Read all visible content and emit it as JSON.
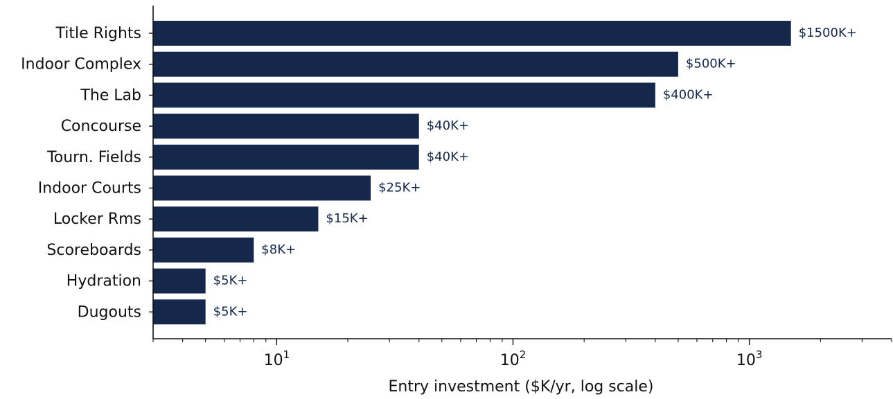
{
  "chart_data": {
    "type": "bar",
    "orientation": "horizontal",
    "categories": [
      "Title Rights",
      "Indoor Complex",
      "The Lab",
      "Concourse",
      "Tourn. Fields",
      "Indoor Courts",
      "Locker Rms",
      "Scoreboards",
      "Hydration",
      "Dugouts"
    ],
    "values": [
      1500,
      500,
      400,
      40,
      40,
      25,
      15,
      8,
      5,
      5
    ],
    "data_labels": [
      "$1500K+",
      "$500K+",
      "$400K+",
      "$40K+",
      "$40K+",
      "$25K+",
      "$15K+",
      "$8K+",
      "$5K+",
      "$5K+"
    ],
    "xlabel": "Entry investment ($K/yr, log scale)",
    "ylabel": "",
    "title": "",
    "x_scale": "log",
    "xlim": [
      3,
      4000
    ],
    "x_major_ticks": [
      {
        "base": "10",
        "exp": "1",
        "value": 10
      },
      {
        "base": "10",
        "exp": "2",
        "value": 100
      },
      {
        "base": "10",
        "exp": "3",
        "value": 1000
      }
    ],
    "grid": false,
    "legend": "none",
    "colors": {
      "bar": "#15284b",
      "label": "#15284b",
      "axis": "#111111"
    }
  }
}
